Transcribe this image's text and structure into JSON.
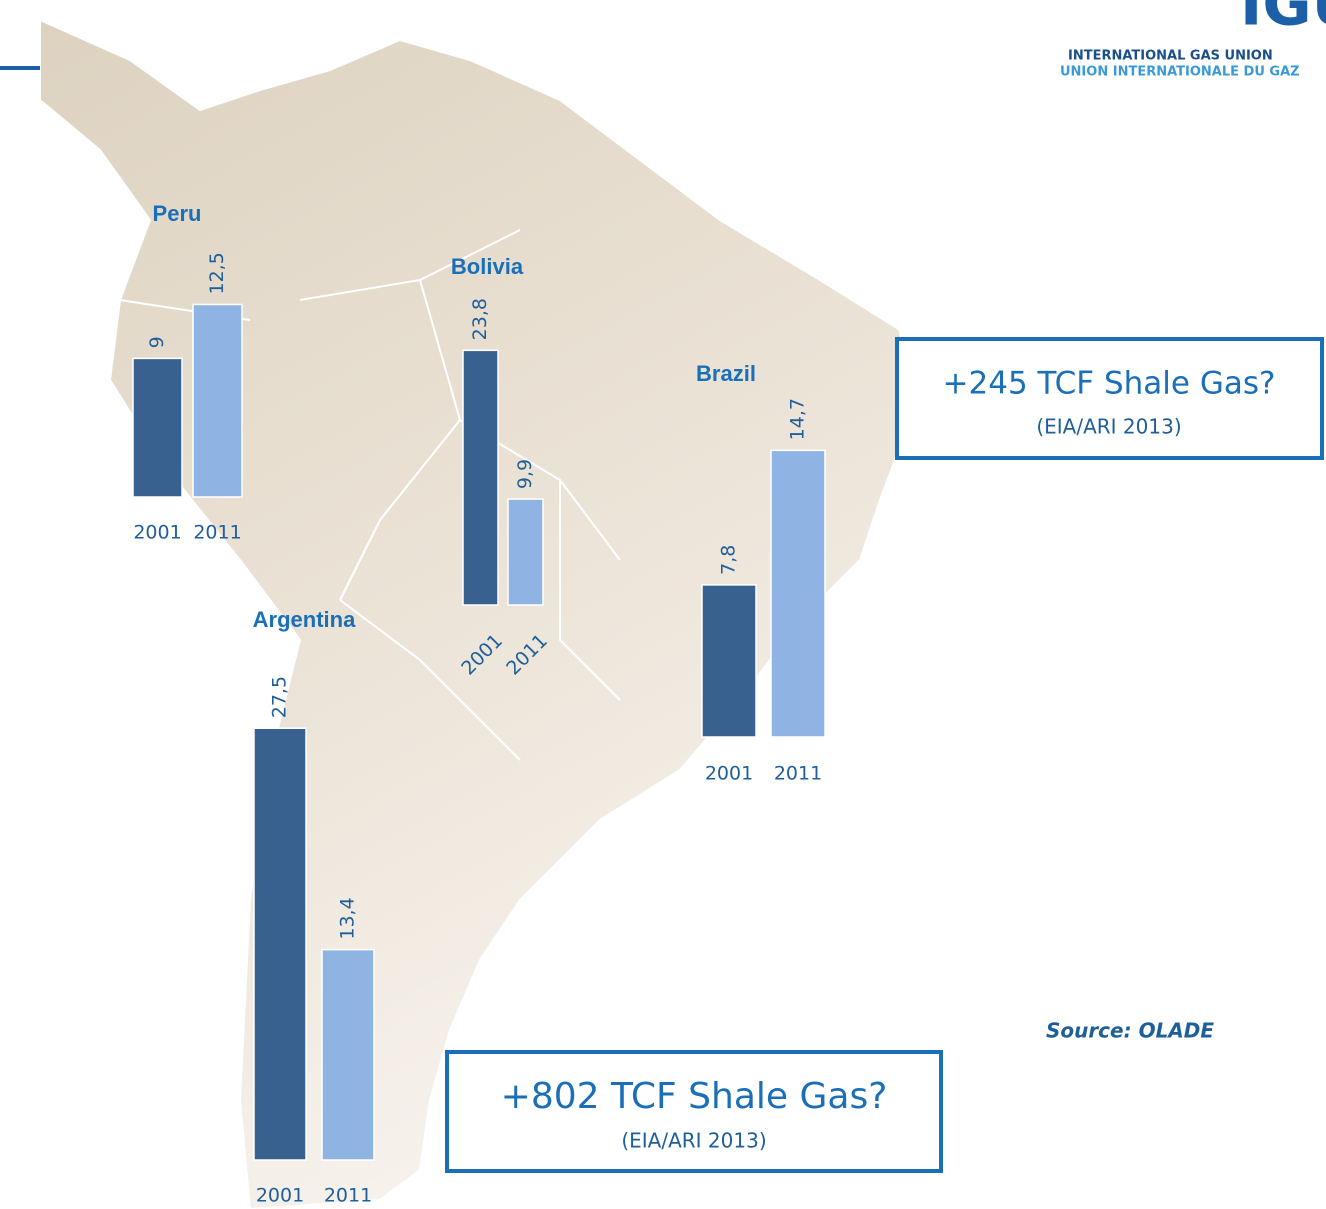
{
  "chart_data": [
    {
      "type": "bar",
      "title": "Peru",
      "categories": [
        "2001",
        "2011"
      ],
      "values": [
        9,
        12.5
      ],
      "value_labels": [
        "9",
        "12,5"
      ],
      "colors": [
        "#38618f",
        "#8fb4e3"
      ]
    },
    {
      "type": "bar",
      "title": "Bolivia",
      "categories": [
        "2001",
        "2011"
      ],
      "values": [
        23.8,
        9.9
      ],
      "value_labels": [
        "23,8",
        "9,9"
      ],
      "colors": [
        "#38618f",
        "#8fb4e3"
      ]
    },
    {
      "type": "bar",
      "title": "Brazil",
      "categories": [
        "2001",
        "2011"
      ],
      "values": [
        7.8,
        14.7
      ],
      "value_labels": [
        "7,8",
        "14,7"
      ],
      "colors": [
        "#38618f",
        "#8fb4e3"
      ]
    },
    {
      "type": "bar",
      "title": "Argentina",
      "categories": [
        "2001",
        "2011"
      ],
      "values": [
        27.5,
        13.4
      ],
      "value_labels": [
        "27,5",
        "13,4"
      ],
      "colors": [
        "#38618f",
        "#8fb4e3"
      ]
    }
  ],
  "annotations": [
    {
      "title": "+245 TCF Shale Gas?",
      "subtitle": "(EIA/ARI 2013)"
    },
    {
      "title": "+802 TCF Shale Gas?",
      "subtitle": "(EIA/ARI 2013)"
    }
  ],
  "source": "Source: OLADE",
  "logo": {
    "mark": "IGU",
    "line1": "INTERNATIONAL GAS UNION",
    "line2": "UNION INTERNATIONALE DU GAZ"
  }
}
